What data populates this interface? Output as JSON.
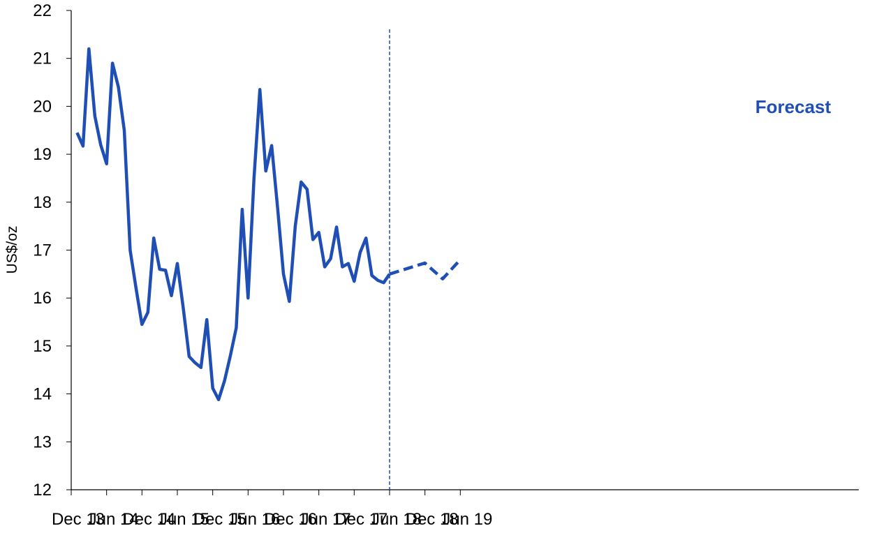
{
  "chart_data": {
    "type": "line",
    "title": "",
    "xlabel": "",
    "ylabel": "US$/oz",
    "ylim": [
      12,
      22
    ],
    "yticks": [
      12,
      13,
      14,
      15,
      16,
      17,
      18,
      19,
      20,
      21,
      22
    ],
    "xticks": [
      "Dec 13",
      "Jun 14",
      "Dec 14",
      "Jun 15",
      "Dec 15",
      "Jun 16",
      "Dec 16",
      "Jun 17",
      "Dec 17",
      "Jun 18",
      "Dec 18",
      "Jun 19"
    ],
    "grid": false,
    "annotation": "Forecast",
    "forecast_start": "Jun 18",
    "line_color": "#1F4EB4",
    "series": [
      {
        "style": "solid",
        "x": [
          "Jan 14",
          "Feb 14",
          "Mar 14",
          "Apr 14",
          "May 14",
          "Jun 14",
          "Jul 14",
          "Aug 14",
          "Sep 14",
          "Oct 14",
          "Nov 14",
          "Dec 14",
          "Jan 15",
          "Feb 15",
          "Mar 15",
          "Apr 15",
          "May 15",
          "Jun 15",
          "Jul 15",
          "Aug 15",
          "Sep 15",
          "Oct 15",
          "Nov 15",
          "Dec 15",
          "Jan 16",
          "Feb 16",
          "Mar 16",
          "Apr 16",
          "May 16",
          "Jun 16",
          "Jul 16",
          "Aug 16",
          "Sep 16",
          "Oct 16",
          "Nov 16",
          "Dec 16",
          "Jan 17",
          "Feb 17",
          "Mar 17",
          "Apr 17",
          "May 17",
          "Jun 17",
          "Jul 17",
          "Aug 17",
          "Sep 17",
          "Oct 17",
          "Nov 17",
          "Dec 17",
          "Jan 18",
          "Feb 18",
          "Mar 18",
          "Apr 18",
          "May 18",
          "Jun 18"
        ],
        "values": [
          19.45,
          19.17,
          21.2,
          19.8,
          19.2,
          18.8,
          20.9,
          20.4,
          19.5,
          17.0,
          16.2,
          15.45,
          15.7,
          17.25,
          16.6,
          16.58,
          16.05,
          16.72,
          15.8,
          14.78,
          14.65,
          14.55,
          15.55,
          14.12,
          13.88,
          14.27,
          14.8,
          15.38,
          17.85,
          16.0,
          18.5,
          20.35,
          18.65,
          19.18,
          17.9,
          16.5,
          15.93,
          17.5,
          18.42,
          18.27,
          17.22,
          17.37,
          16.65,
          16.82,
          17.48,
          16.65,
          16.72,
          16.35,
          16.95,
          17.25,
          16.47,
          16.37,
          16.32,
          16.5
        ]
      },
      {
        "style": "dashed",
        "x": [
          "Jun 18",
          "Dec 18",
          "Mar 19",
          "Jun 19"
        ],
        "values": [
          16.5,
          16.73,
          16.4,
          16.8
        ]
      }
    ]
  }
}
